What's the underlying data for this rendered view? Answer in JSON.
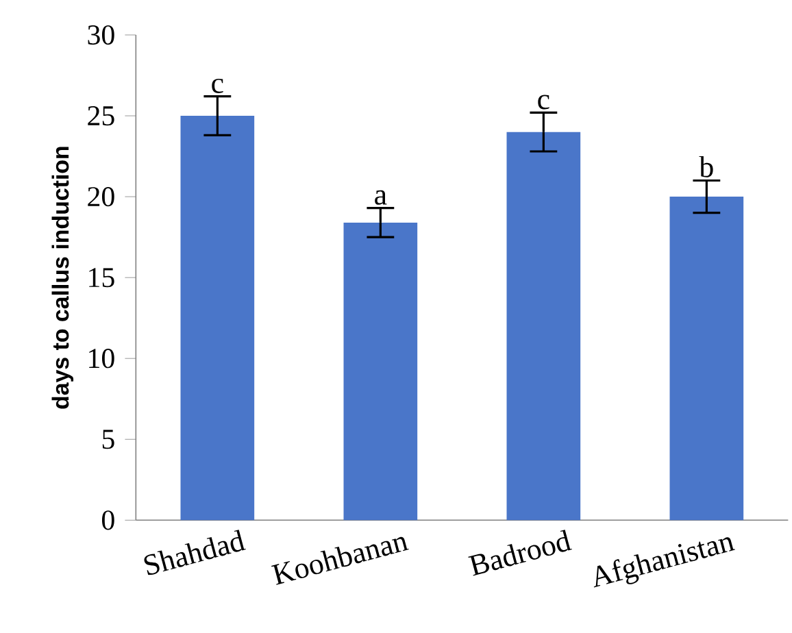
{
  "chart_data": {
    "type": "bar",
    "ylabel": "days to callus induction",
    "categories": [
      "Shahdad",
      "Koohbanan",
      "Badrood",
      "Afghanistan"
    ],
    "values": [
      25.0,
      18.4,
      24.0,
      20.0
    ],
    "errors": [
      1.2,
      0.9,
      1.2,
      1.0
    ],
    "color": "#4a76c9",
    "ylim": [
      0,
      30
    ],
    "yticks": [
      0,
      5,
      10,
      15,
      20,
      25,
      30
    ],
    "annotations": [
      "c",
      "a",
      "c",
      "b"
    ]
  }
}
